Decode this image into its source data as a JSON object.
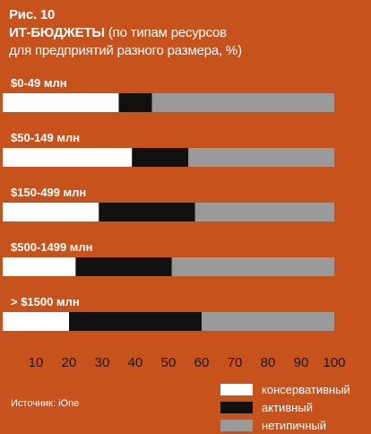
{
  "chart_data": {
    "type": "bar",
    "orientation": "horizontal",
    "stacked": true,
    "figure_label": "Рис. 10",
    "title_bold": "ИТ-БЮДЖЕТЫ",
    "title_rest": " (по типам ресурсов",
    "title_line2": "для предприятий разного размера, %)",
    "categories": [
      "$0-49 млн",
      "$50-149 млн",
      "$150-499 млн",
      "$500-1499 млн",
      "> $1500 млн"
    ],
    "series": [
      {
        "name": "консервативный",
        "color": "#ffffff",
        "values": [
          35,
          39,
          29,
          22,
          20
        ]
      },
      {
        "name": "активный",
        "color": "#111111",
        "values": [
          10,
          17,
          29,
          29,
          40
        ]
      },
      {
        "name": "нетипичный",
        "color": "#9a9a9a",
        "values": [
          55,
          44,
          42,
          49,
          40
        ]
      }
    ],
    "xlim": [
      0,
      100
    ],
    "x_ticks": [
      10,
      20,
      30,
      40,
      50,
      60,
      70,
      80,
      90,
      100
    ],
    "grid": false,
    "legend_position": "bottom-right"
  },
  "source": "Источник: iOne"
}
